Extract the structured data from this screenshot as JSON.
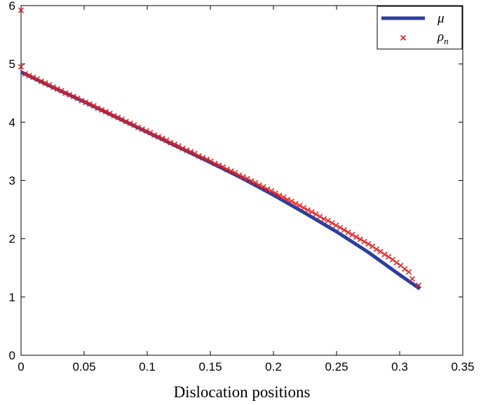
{
  "chart_data": {
    "type": "line",
    "title": "",
    "xlabel": "Dislocation positions",
    "ylabel": "",
    "xlim": [
      0,
      0.35
    ],
    "ylim": [
      0,
      6
    ],
    "x_ticks": [
      "0",
      "0.05",
      "0.1",
      "0.15",
      "0.2",
      "0.25",
      "0.3",
      "0.35"
    ],
    "y_ticks": [
      "0",
      "1",
      "2",
      "3",
      "4",
      "5",
      "6"
    ],
    "grid": false,
    "legend_position": "top-right",
    "series": [
      {
        "name": "μ",
        "style": "line",
        "color": "#2b3f9e",
        "x": [
          0,
          0.025,
          0.05,
          0.075,
          0.1,
          0.125,
          0.15,
          0.175,
          0.2,
          0.225,
          0.25,
          0.275,
          0.3,
          0.31,
          0.316
        ],
        "y": [
          4.86,
          4.6,
          4.35,
          4.09,
          3.83,
          3.57,
          3.31,
          3.04,
          2.75,
          2.44,
          2.12,
          1.77,
          1.38,
          1.23,
          1.14
        ]
      },
      {
        "name": "ρ_n",
        "label_base": "ρ",
        "label_sub": "n",
        "style": "markers",
        "marker": "x",
        "color": "#e02020",
        "x": [
          0,
          0,
          0.0032,
          0.0064,
          0.0096,
          0.0128,
          0.016,
          0.0192,
          0.0224,
          0.0256,
          0.0288,
          0.032,
          0.0352,
          0.0384,
          0.0416,
          0.0448,
          0.048,
          0.0512,
          0.0544,
          0.0576,
          0.0608,
          0.064,
          0.0672,
          0.0704,
          0.0736,
          0.0768,
          0.08,
          0.0832,
          0.0864,
          0.0896,
          0.0928,
          0.096,
          0.0992,
          0.1024,
          0.1056,
          0.1088,
          0.112,
          0.1152,
          0.1184,
          0.1216,
          0.1248,
          0.128,
          0.1312,
          0.1344,
          0.1376,
          0.1408,
          0.144,
          0.1472,
          0.1504,
          0.1536,
          0.1568,
          0.16,
          0.1632,
          0.1664,
          0.1696,
          0.1728,
          0.176,
          0.1792,
          0.1824,
          0.1856,
          0.1888,
          0.192,
          0.1952,
          0.1984,
          0.2016,
          0.2048,
          0.208,
          0.2112,
          0.2144,
          0.2176,
          0.2208,
          0.224,
          0.2272,
          0.2304,
          0.2336,
          0.2368,
          0.24,
          0.2432,
          0.2464,
          0.2496,
          0.2528,
          0.256,
          0.2592,
          0.2624,
          0.2656,
          0.2688,
          0.272,
          0.2752,
          0.2784,
          0.2816,
          0.2848,
          0.288,
          0.2912,
          0.2944,
          0.2976,
          0.3008,
          0.304,
          0.3072,
          0.31,
          0.315
        ],
        "y": [
          5.92,
          4.95,
          4.83,
          4.8,
          4.77,
          4.74,
          4.7,
          4.67,
          4.64,
          4.6,
          4.57,
          4.54,
          4.5,
          4.47,
          4.44,
          4.41,
          4.37,
          4.34,
          4.31,
          4.28,
          4.24,
          4.21,
          4.18,
          4.15,
          4.11,
          4.08,
          4.05,
          4.01,
          3.98,
          3.95,
          3.91,
          3.88,
          3.85,
          3.82,
          3.78,
          3.75,
          3.72,
          3.69,
          3.65,
          3.62,
          3.59,
          3.55,
          3.52,
          3.49,
          3.46,
          3.42,
          3.39,
          3.36,
          3.33,
          3.29,
          3.26,
          3.23,
          3.19,
          3.16,
          3.13,
          3.09,
          3.06,
          3.03,
          2.99,
          2.96,
          2.92,
          2.89,
          2.85,
          2.82,
          2.78,
          2.74,
          2.71,
          2.67,
          2.64,
          2.6,
          2.57,
          2.53,
          2.49,
          2.46,
          2.42,
          2.38,
          2.34,
          2.31,
          2.27,
          2.23,
          2.19,
          2.15,
          2.11,
          2.07,
          2.03,
          1.99,
          1.95,
          1.91,
          1.87,
          1.82,
          1.78,
          1.73,
          1.69,
          1.64,
          1.59,
          1.54,
          1.48,
          1.43,
          1.31,
          1.2
        ]
      }
    ]
  }
}
